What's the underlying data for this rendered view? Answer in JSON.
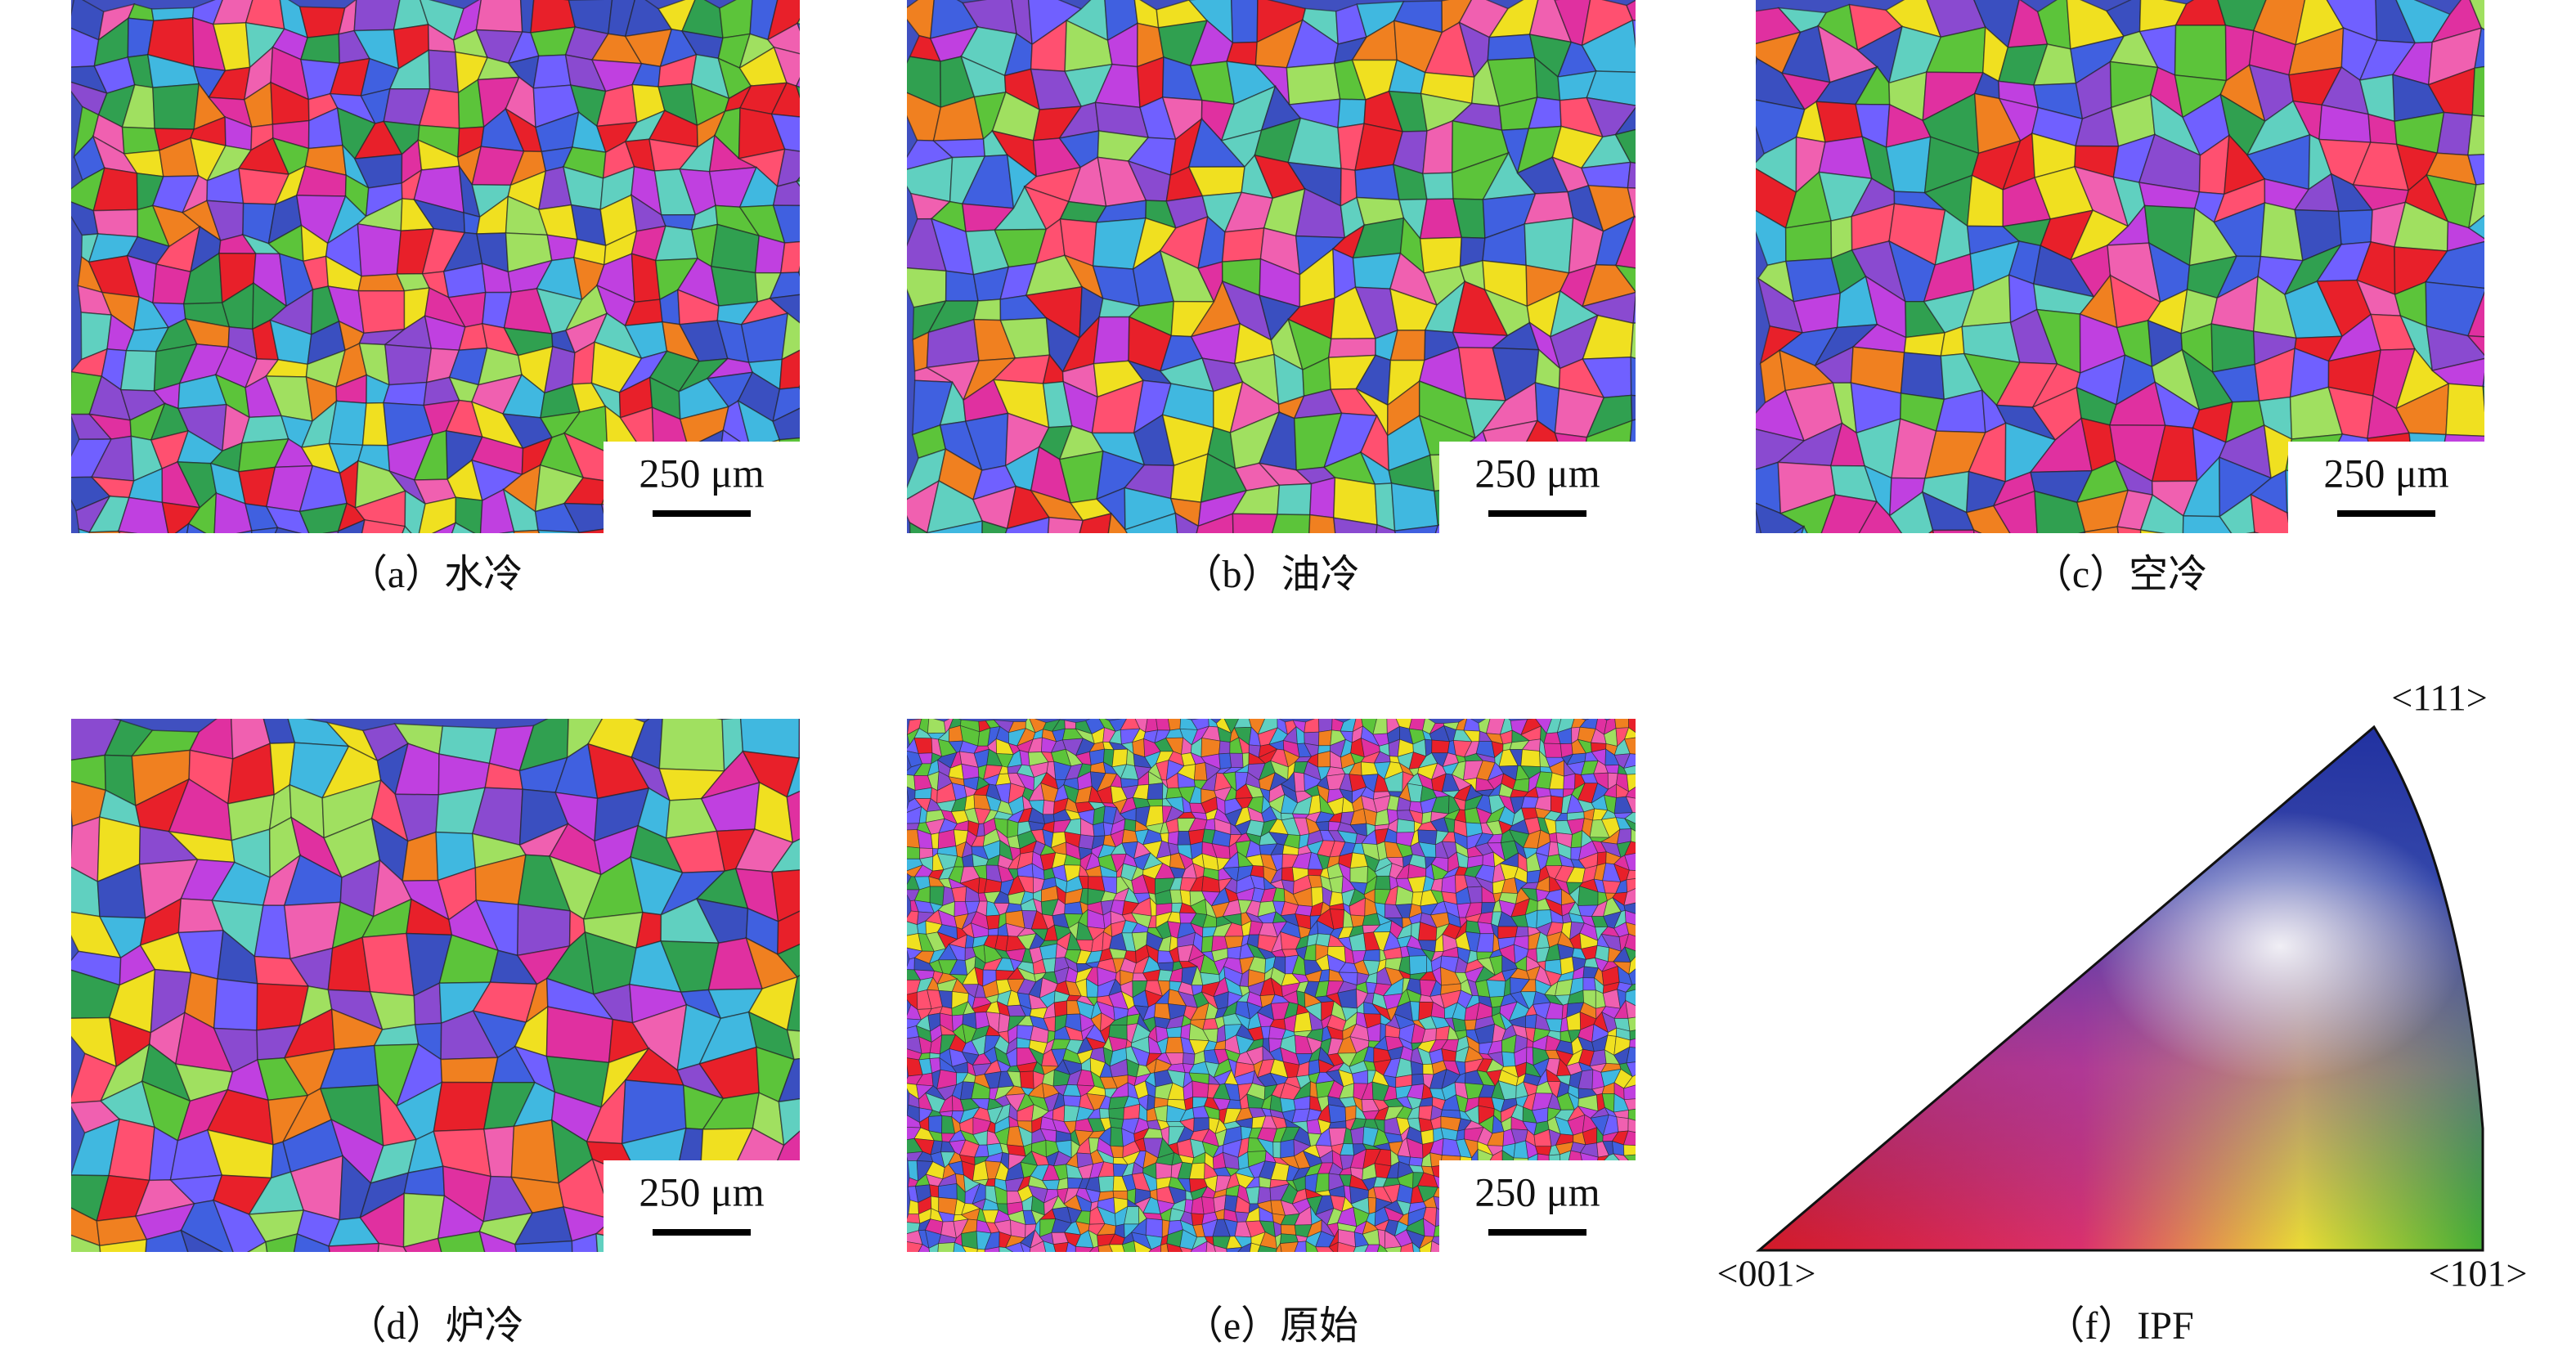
{
  "panels": [
    {
      "caption": "（a）水冷",
      "scale_bar": "250 μm"
    },
    {
      "caption": "（b）油冷",
      "scale_bar": "250 μm"
    },
    {
      "caption": "（c）空冷",
      "scale_bar": "250 μm"
    },
    {
      "caption": "（d）炉冷",
      "scale_bar": "250 μm"
    },
    {
      "caption": "（e）原始",
      "scale_bar": "250 μm"
    }
  ],
  "ipf": {
    "caption": "（f）IPF",
    "labels": [
      "<001>",
      "<101>",
      "<111>"
    ]
  }
}
